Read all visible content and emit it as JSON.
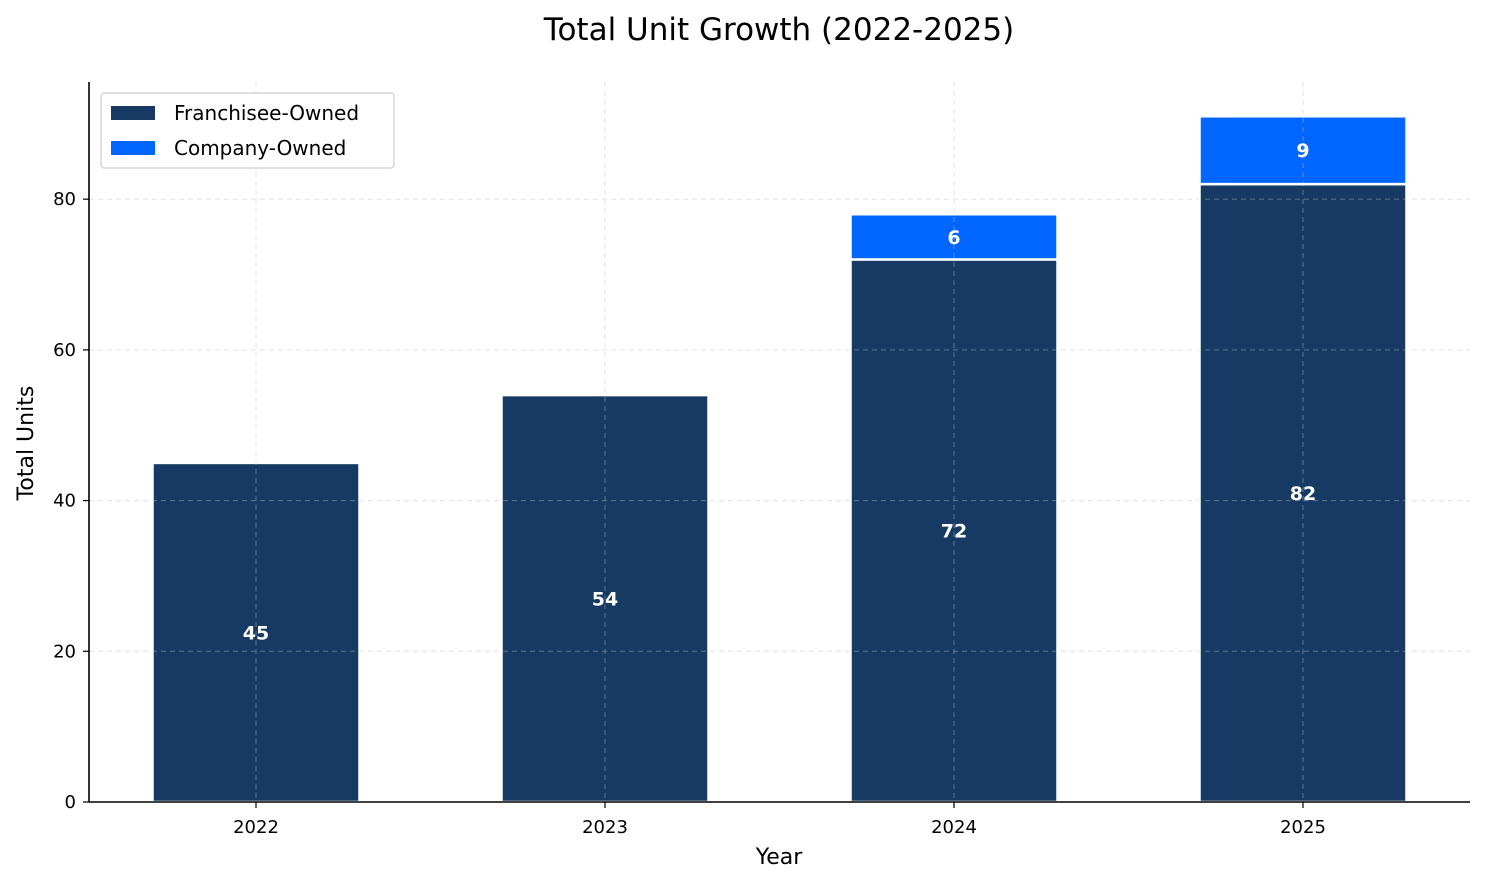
{
  "chart_data": {
    "type": "bar",
    "stacked": true,
    "title": "Total Unit Growth (2022-2025)",
    "xlabel": "Year",
    "ylabel": "Total Units",
    "categories": [
      "2022",
      "2023",
      "2024",
      "2025"
    ],
    "series": [
      {
        "name": "Franchisee-Owned",
        "values": [
          45,
          54,
          72,
          82
        ],
        "color": "#163a63"
      },
      {
        "name": "Company-Owned",
        "values": [
          0,
          0,
          6,
          9
        ],
        "color": "#0066ff"
      }
    ],
    "ylim": [
      0,
      95.55
    ],
    "yticks": [
      "0",
      "20",
      "40",
      "60",
      "80"
    ],
    "grid": true,
    "legend": "top-left"
  }
}
